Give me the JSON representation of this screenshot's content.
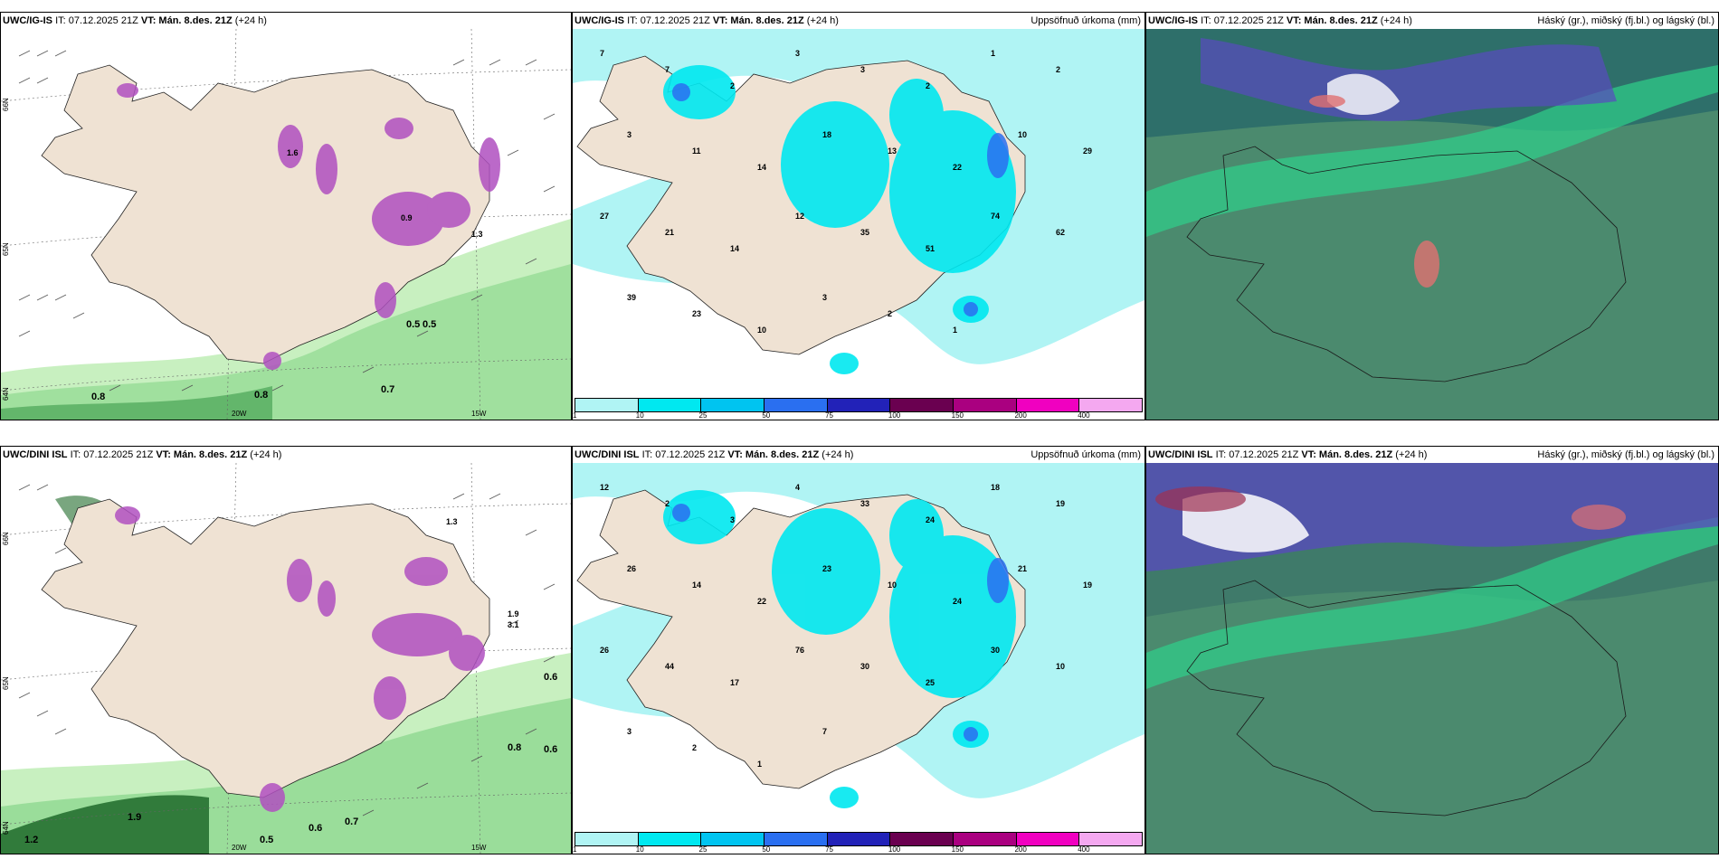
{
  "rows": [
    {
      "model": "UWC/IG-IS",
      "it": "IT: 07.12.2025 21Z",
      "vt_label": "VT:",
      "vt_value": "Mán. 8.des. 21Z",
      "lead": "(+24 h)",
      "precip_title": "Uppsöfnuð úrkoma (mm)",
      "cloud_title": "Háský (gr.), miðský (fj.bl.) og lágský (bl.)",
      "wind_values": [
        "0.5",
        "0.5",
        "0.7",
        "0.8",
        "0.8",
        "1.6",
        "0.9",
        "1.3"
      ],
      "precip_values": [
        "7",
        "7",
        "2",
        "3",
        "3",
        "2",
        "1",
        "2",
        "3",
        "11",
        "14",
        "18",
        "13",
        "22",
        "10",
        "29",
        "27",
        "21",
        "14",
        "12",
        "35",
        "51",
        "74",
        "62",
        "39",
        "23",
        "10",
        "3",
        "2",
        "1"
      ],
      "axis_labels": [
        "66N",
        "65N",
        "64N",
        "20W",
        "15W"
      ]
    },
    {
      "model": "UWC/DINI ISL",
      "it": "IT: 07.12.2025 21Z",
      "vt_label": "VT:",
      "vt_value": "Mán. 8.des. 21Z",
      "lead": "(+24 h)",
      "precip_title": "Uppsöfnuð úrkoma (mm)",
      "cloud_title": "Háský (gr.), miðský (fj.bl.) og lágský (bl.)",
      "wind_values": [
        "0.6",
        "0.6",
        "1.9",
        "0.5",
        "0.6",
        "0.7",
        "0.8",
        "1.2",
        "1.3",
        "1.9",
        "3.1"
      ],
      "precip_values": [
        "12",
        "2",
        "3",
        "4",
        "33",
        "24",
        "18",
        "19",
        "26",
        "14",
        "22",
        "23",
        "10",
        "24",
        "21",
        "19",
        "26",
        "44",
        "17",
        "76",
        "30",
        "25",
        "30",
        "10",
        "3",
        "2",
        "1",
        "7"
      ],
      "axis_labels": [
        "66N",
        "65N",
        "64N",
        "20W",
        "15W"
      ]
    }
  ],
  "precip_scale": {
    "ticks": [
      "1",
      "10",
      "25",
      "50",
      "75",
      "100",
      "150",
      "200",
      "400"
    ],
    "colors": [
      "#b0f4f4",
      "#00e8f0",
      "#00c4f0",
      "#2a6ff0",
      "#2222b8",
      "#6a0050",
      "#aa0080",
      "#f000c0",
      "#f4a8f0"
    ]
  },
  "colors": {
    "land": "#efe2d3",
    "sea": "#ffffff",
    "wind_light": "#c8f0c0",
    "wind_mid": "#7cd080",
    "wind_dark": "#2a8a3a",
    "gust": "#b050c0",
    "cloud_low": "#2e6f6a",
    "cloud_mid": "#2fd08a",
    "cloud_high": "#5a4ac0"
  }
}
